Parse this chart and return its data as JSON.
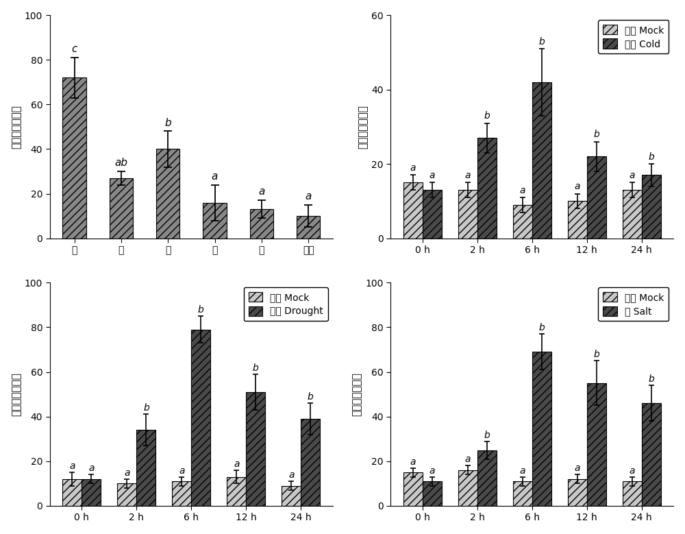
{
  "panel1": {
    "categories": [
      "根",
      "茎",
      "叶",
      "花",
      "果",
      "卷须"
    ],
    "values": [
      72,
      27,
      40,
      16,
      13,
      10
    ],
    "errors": [
      9,
      3,
      8,
      8,
      4,
      5
    ],
    "bar_color": "#888888",
    "bar_hatch": "///",
    "ylabel": "基因相对表达量",
    "ylim": [
      0,
      100
    ],
    "yticks": [
      0,
      20,
      40,
      60,
      80,
      100
    ],
    "labels": [
      "c",
      "ab",
      "b",
      "a",
      "a",
      "a"
    ]
  },
  "panel2": {
    "time_labels": [
      "0 h",
      "2 h",
      "6 h",
      "12 h",
      "24 h"
    ],
    "mock_values": [
      15,
      13,
      9,
      10,
      13
    ],
    "mock_errors": [
      2,
      2,
      2,
      2,
      2
    ],
    "treat_values": [
      13,
      27,
      42,
      22,
      17
    ],
    "treat_errors": [
      2,
      4,
      9,
      4,
      3
    ],
    "mock_color": "#c8c8c8",
    "treat_color": "#4a4a4a",
    "mock_hatch": "///",
    "treat_hatch": "///",
    "ylabel": "基因相对表达量",
    "ylim": [
      0,
      60
    ],
    "yticks": [
      0,
      20,
      40,
      60
    ],
    "legend_mock": "对照 Mock",
    "legend_treat": "低温 Cold",
    "mock_labels": [
      "a",
      "a",
      "a",
      "a",
      "a"
    ],
    "treat_labels": [
      "a",
      "b",
      "b",
      "b",
      "b"
    ]
  },
  "panel3": {
    "time_labels": [
      "0 h",
      "2 h",
      "6 h",
      "12 h",
      "24 h"
    ],
    "mock_values": [
      12,
      10,
      11,
      13,
      9
    ],
    "mock_errors": [
      3,
      2,
      2,
      3,
      2
    ],
    "treat_values": [
      12,
      34,
      79,
      51,
      39
    ],
    "treat_errors": [
      2,
      7,
      6,
      8,
      7
    ],
    "mock_color": "#c8c8c8",
    "treat_color": "#4a4a4a",
    "mock_hatch": "///",
    "treat_hatch": "///",
    "ylabel": "基因相对表达量",
    "ylim": [
      0,
      100
    ],
    "yticks": [
      0,
      20,
      40,
      60,
      80,
      100
    ],
    "legend_mock": "对照 Mock",
    "legend_treat": "干旱 Drought",
    "mock_labels": [
      "a",
      "a",
      "a",
      "a",
      "a"
    ],
    "treat_labels": [
      "a",
      "b",
      "b",
      "b",
      "b"
    ]
  },
  "panel4": {
    "time_labels": [
      "0 h",
      "2 h",
      "6 h",
      "12 h",
      "24 h"
    ],
    "mock_values": [
      15,
      16,
      11,
      12,
      11
    ],
    "mock_errors": [
      2,
      2,
      2,
      2,
      2
    ],
    "treat_values": [
      11,
      25,
      69,
      55,
      46
    ],
    "treat_errors": [
      2,
      4,
      8,
      10,
      8
    ],
    "mock_color": "#c8c8c8",
    "treat_color": "#4a4a4a",
    "mock_hatch": "///",
    "treat_hatch": "///",
    "ylabel": "基因相对表达量",
    "ylim": [
      0,
      100
    ],
    "yticks": [
      0,
      20,
      40,
      60,
      80,
      100
    ],
    "legend_mock": "对照 Mock",
    "legend_treat": "盐 Salt",
    "mock_labels": [
      "a",
      "a",
      "a",
      "a",
      "a"
    ],
    "treat_labels": [
      "a",
      "b",
      "b",
      "b",
      "b"
    ]
  },
  "label_fontsize": 11,
  "tick_fontsize": 10,
  "annot_fontsize": 11,
  "legend_fontsize": 10
}
